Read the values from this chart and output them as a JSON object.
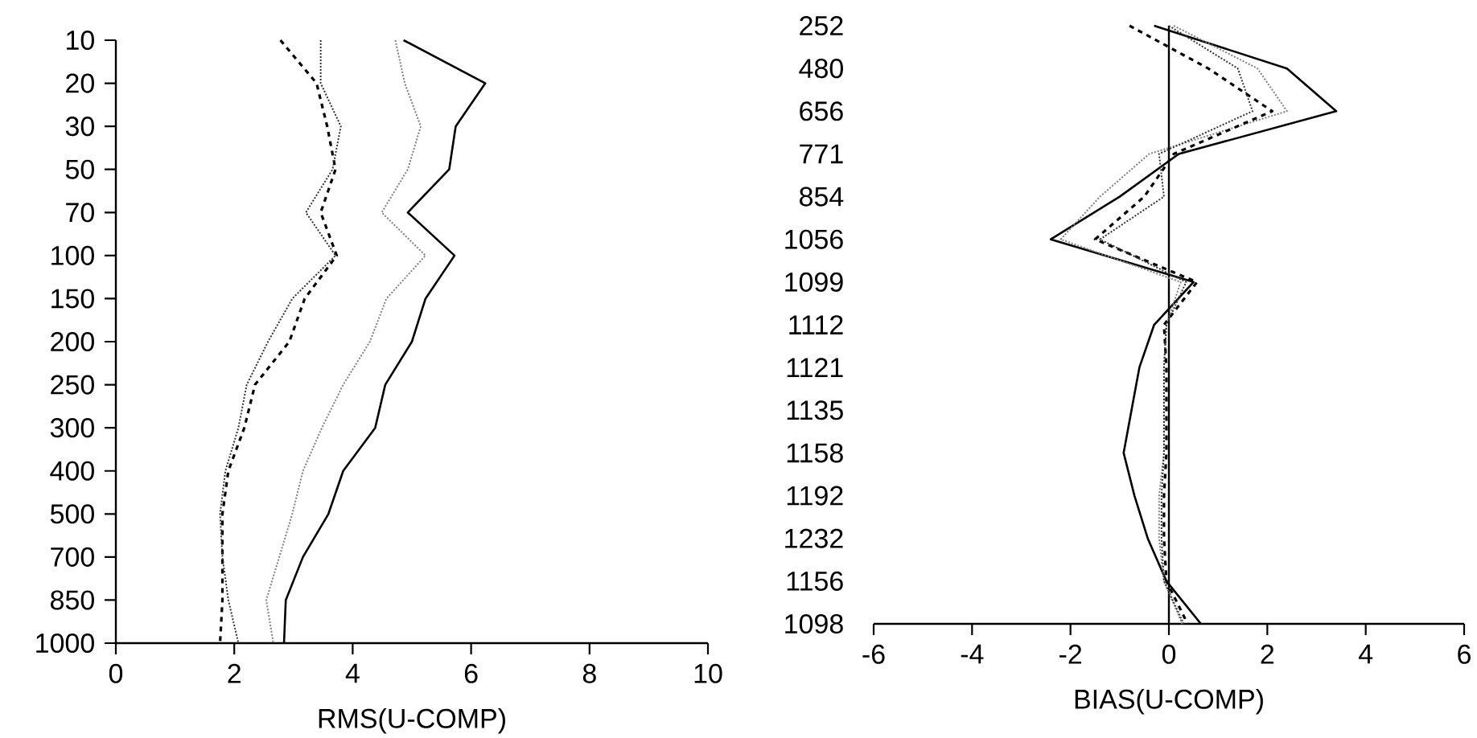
{
  "chart_data": [
    {
      "type": "line",
      "orientation": "horizontal",
      "xlabel": "RMS(U-COMP)",
      "categories": [
        "10",
        "20",
        "30",
        "50",
        "70",
        "100",
        "150",
        "200",
        "250",
        "300",
        "400",
        "500",
        "700",
        "850",
        "1000"
      ],
      "xlim": [
        0,
        10
      ],
      "xticks": [
        0,
        2,
        4,
        6,
        8,
        10
      ],
      "series": [
        {
          "color": "#000000",
          "line_style": "solid",
          "values": [
            4.86,
            6.24,
            5.74,
            5.63,
            4.93,
            5.72,
            5.23,
            5.0,
            4.55,
            4.38,
            3.84,
            3.59,
            3.16,
            2.87,
            2.84
          ]
        },
        {
          "color": "#808080",
          "line_style": "dotted",
          "values": [
            4.72,
            4.88,
            5.15,
            4.93,
            4.49,
            5.23,
            4.57,
            4.29,
            3.84,
            3.48,
            3.16,
            2.98,
            2.76,
            2.54,
            2.66
          ]
        },
        {
          "color": "#000000",
          "line_style": "dashed",
          "values": [
            2.78,
            3.39,
            3.57,
            3.71,
            3.46,
            3.73,
            3.19,
            2.93,
            2.35,
            2.17,
            1.9,
            1.8,
            1.8,
            1.8,
            1.76
          ]
        },
        {
          "color": "#333333",
          "line_style": "dotted",
          "values": [
            3.46,
            3.46,
            3.8,
            3.66,
            3.21,
            3.71,
            2.98,
            2.57,
            2.21,
            2.07,
            1.85,
            1.76,
            1.8,
            1.9,
            2.07
          ]
        }
      ]
    },
    {
      "type": "line",
      "orientation": "horizontal",
      "xlabel": "BIAS(U-COMP)",
      "categories": [
        "252",
        "480",
        "656",
        "771",
        "854",
        "1056",
        "1099",
        "1112",
        "1121",
        "1135",
        "1158",
        "1192",
        "1232",
        "1156",
        "1098"
      ],
      "xlim": [
        -6,
        6
      ],
      "xticks": [
        -6,
        -4,
        -2,
        0,
        2,
        4,
        6
      ],
      "series": [
        {
          "color": "#000000",
          "line_style": "solid",
          "values": [
            -0.3,
            2.4,
            3.4,
            0.2,
            -1.0,
            -2.4,
            0.5,
            -0.3,
            -0.6,
            -0.76,
            -0.92,
            -0.7,
            -0.43,
            -0.05,
            0.65
          ]
        },
        {
          "color": "#808080",
          "line_style": "dotted",
          "values": [
            0.1,
            1.8,
            2.4,
            -0.4,
            -1.4,
            -2.2,
            0.24,
            -0.05,
            -0.1,
            -0.1,
            -0.1,
            -0.2,
            -0.2,
            -0.1,
            0.27
          ]
        },
        {
          "color": "#000000",
          "line_style": "dashed",
          "values": [
            -0.8,
            0.8,
            2.1,
            0.1,
            -0.5,
            -1.5,
            0.57,
            -0.1,
            -0.05,
            -0.05,
            -0.05,
            -0.1,
            -0.1,
            -0.05,
            0.38
          ]
        },
        {
          "color": "#333333",
          "line_style": "dotted",
          "values": [
            0.0,
            1.4,
            1.7,
            -0.2,
            -0.1,
            -1.4,
            0.35,
            -0.05,
            -0.1,
            -0.1,
            -0.1,
            -0.15,
            -0.15,
            -0.1,
            0.3
          ]
        }
      ]
    }
  ]
}
